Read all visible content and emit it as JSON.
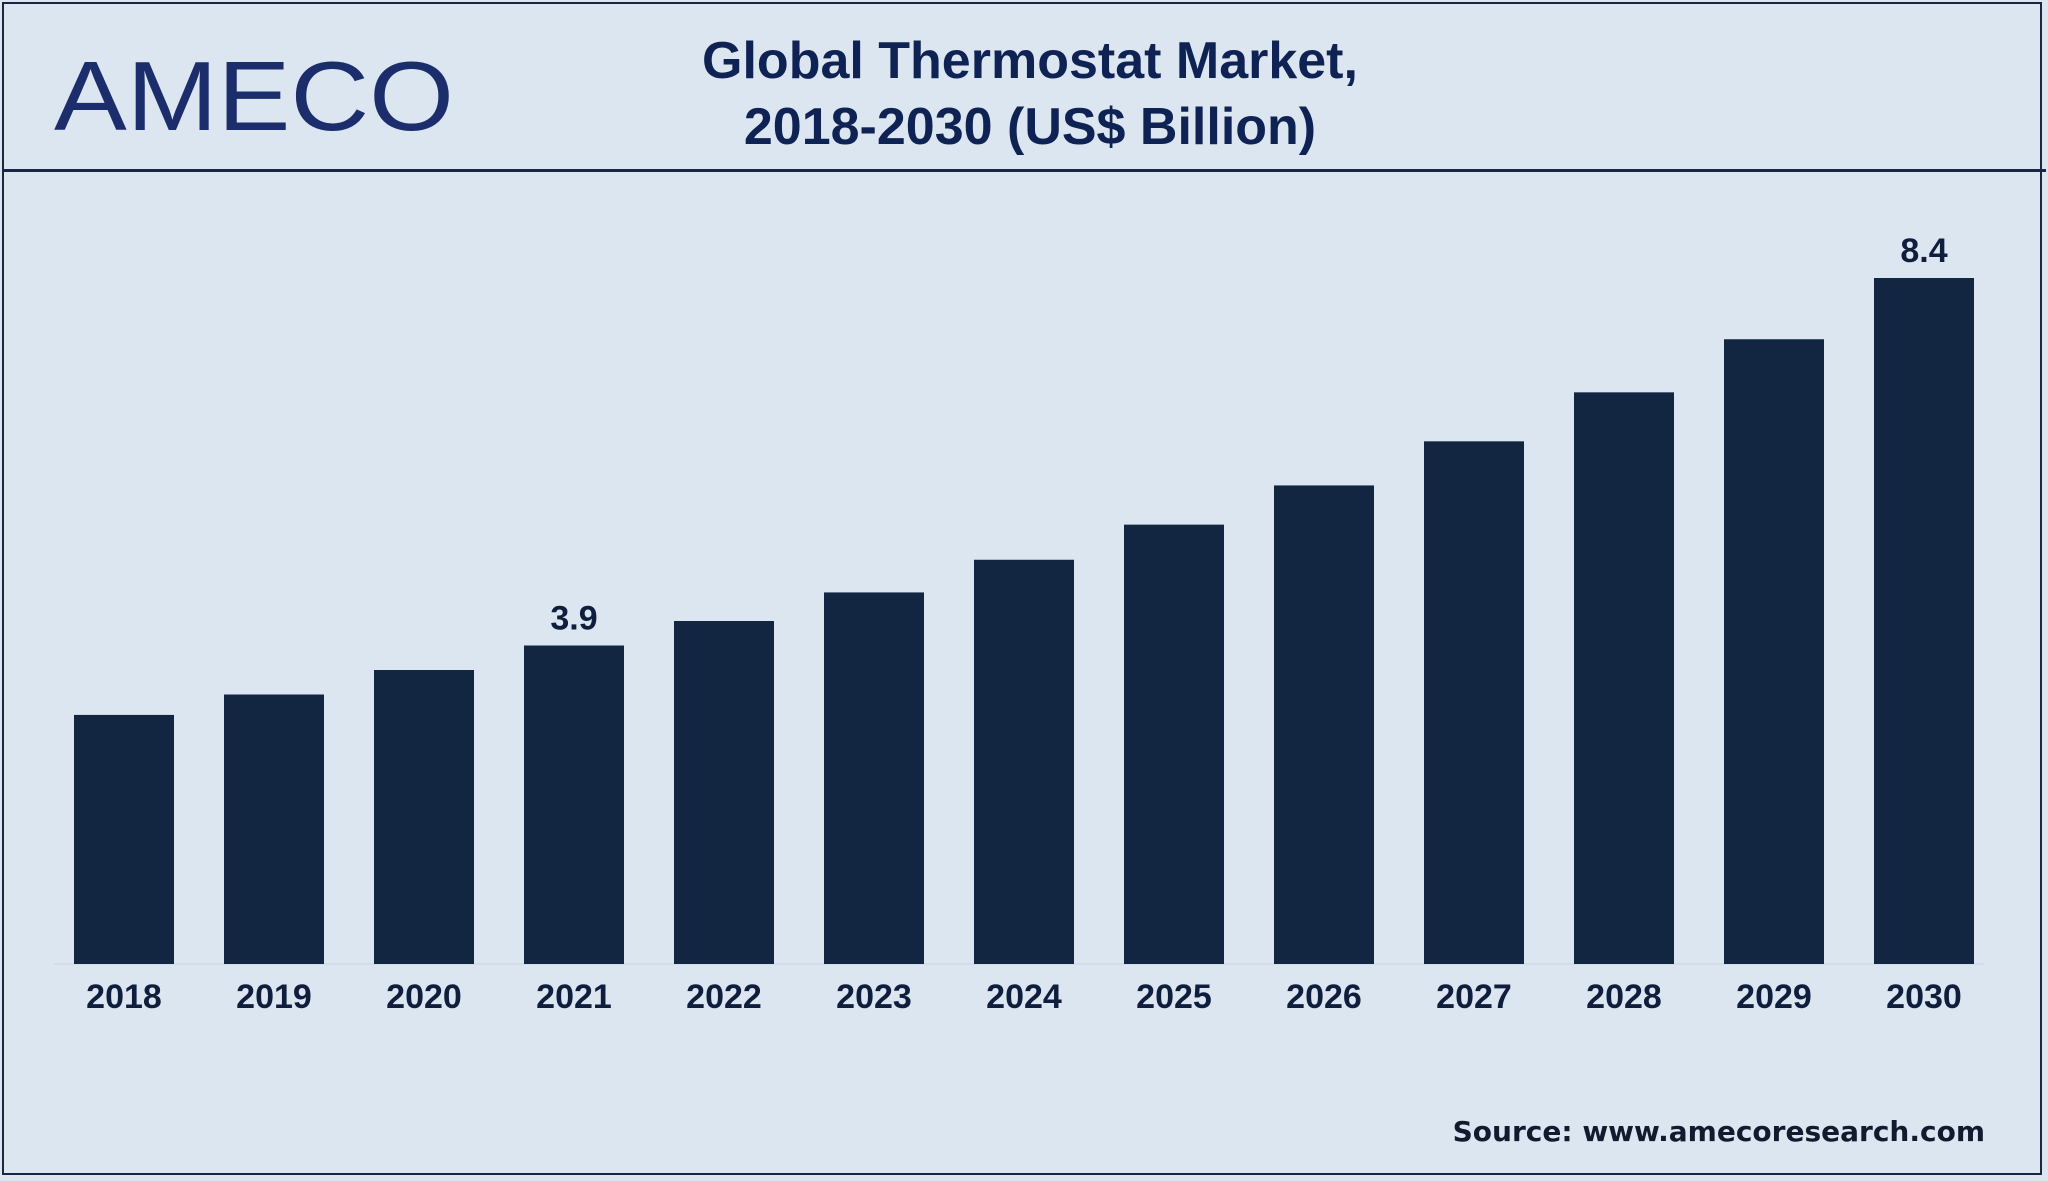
{
  "header": {
    "logo_text": "AMECO",
    "title_line1": "Global Thermostat Market,",
    "title_line2": "2018-2030 (US$ Billion)"
  },
  "colors": {
    "background": "#dce6f1",
    "bar": "#122641",
    "title": "#0f2254",
    "logo": "#1b2d6b"
  },
  "chart_data": {
    "type": "bar",
    "title": "Global Thermostat Market, 2018-2030 (US$ Billion)",
    "xlabel": "",
    "ylabel": "",
    "categories": [
      "2018",
      "2019",
      "2020",
      "2021",
      "2022",
      "2023",
      "2024",
      "2025",
      "2026",
      "2027",
      "2028",
      "2029",
      "2030"
    ],
    "values": [
      3.05,
      3.3,
      3.6,
      3.9,
      4.2,
      4.55,
      4.95,
      5.38,
      5.86,
      6.4,
      7.0,
      7.65,
      8.4
    ],
    "data_labels": [
      {
        "category": "2021",
        "text": "3.9"
      },
      {
        "category": "2030",
        "text": "8.4"
      }
    ],
    "ylim": [
      0,
      8.4
    ],
    "grid": false,
    "legend": "none"
  },
  "footer": {
    "source": "Source: www.amecoresearch.com"
  }
}
